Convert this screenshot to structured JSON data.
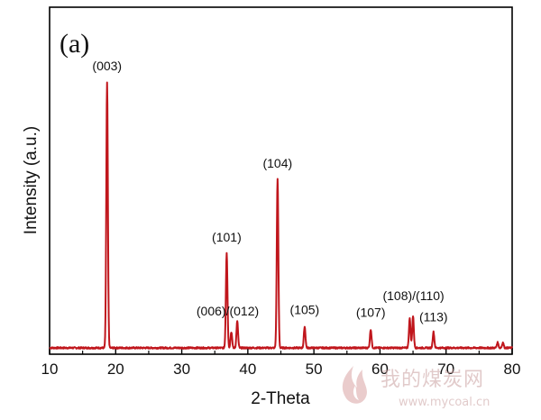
{
  "chart_data": {
    "type": "line",
    "panel_label": "(a)",
    "xlabel": "2-Theta",
    "ylabel": "Intensity (a.u.)",
    "xlim": [
      10,
      80
    ],
    "ylim": [
      0,
      1.05
    ],
    "x_ticks": [
      10,
      20,
      30,
      40,
      50,
      60,
      70,
      80
    ],
    "y_ticks_shown": false,
    "series": [
      {
        "color": "#c0161c",
        "peaks": [
          {
            "x": 18.7,
            "y": 1.0,
            "label": "(003)"
          },
          {
            "x": 36.8,
            "y": 0.36,
            "label": "(101)"
          },
          {
            "x": 37.5,
            "y": 0.06,
            "label": ""
          },
          {
            "x": 38.4,
            "y": 0.1,
            "label": ""
          },
          {
            "x": 44.5,
            "y": 0.64,
            "label": "(104)"
          },
          {
            "x": 48.6,
            "y": 0.08,
            "label": "(105)"
          },
          {
            "x": 58.6,
            "y": 0.07,
            "label": "(107)"
          },
          {
            "x": 64.5,
            "y": 0.11,
            "label": ""
          },
          {
            "x": 65.0,
            "y": 0.12,
            "label": ""
          },
          {
            "x": 68.1,
            "y": 0.06,
            "label": "(113)"
          },
          {
            "x": 77.8,
            "y": 0.02,
            "label": ""
          },
          {
            "x": 78.6,
            "y": 0.02,
            "label": ""
          }
        ]
      }
    ],
    "annotations": [
      {
        "text": "(006)/(012)",
        "x": 37.5
      },
      {
        "text": "(108)/(110)",
        "x": 64.8
      }
    ]
  },
  "watermark": {
    "text_cn": "我的煤炭网",
    "url": "www.mycoal.cn"
  }
}
